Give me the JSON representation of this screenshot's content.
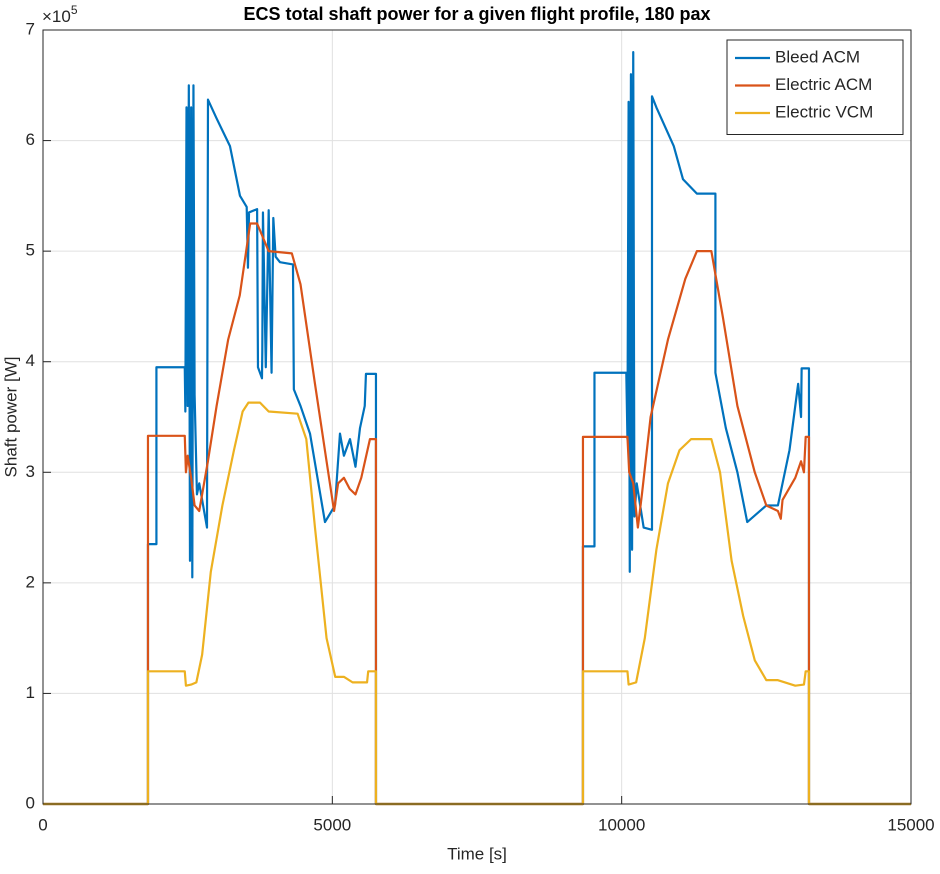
{
  "chart_data": {
    "type": "line",
    "title": "ECS total shaft power for a given flight profile, 180 pax",
    "x_label": "Time [s]",
    "y_label": "Shaft power [W]",
    "y_exponent_base": "×10",
    "y_exponent": "5",
    "xlim": [
      0,
      15000
    ],
    "xticks": [
      0,
      5000,
      10000,
      15000
    ],
    "ylim": [
      0,
      7
    ],
    "yticks": [
      0,
      1,
      2,
      3,
      4,
      5,
      6,
      7
    ],
    "grid": true,
    "legend": "top-right",
    "series": [
      {
        "name": "Bleed ACM",
        "color": "#0072bd",
        "x": [
          0,
          1814,
          1814,
          1960,
          1960,
          2450,
          2460,
          2480,
          2500,
          2520,
          2540,
          2560,
          2580,
          2600,
          2620,
          2660,
          2700,
          2834,
          2851,
          3000,
          3231,
          3404,
          3520,
          3542,
          3560,
          3700,
          3715,
          3784,
          3790,
          3801,
          3850,
          3900,
          3950,
          3980,
          4020,
          4095,
          4320,
          4335,
          4450,
          4614,
          4873,
          5046,
          5132,
          5200,
          5305,
          5400,
          5478,
          5560,
          5581,
          5754,
          5754,
          9331,
          9331,
          9530,
          9530,
          10080,
          10100,
          10120,
          10140,
          10160,
          10180,
          10200,
          10220,
          10260,
          10380,
          10524,
          10524,
          10600,
          10900,
          11060,
          11300,
          11620,
          11620,
          11800,
          12000,
          12170,
          12500,
          12700,
          12900,
          13050,
          13100,
          13110,
          13237,
          13237,
          15000
        ],
        "values": [
          0,
          0,
          2.35,
          2.35,
          3.95,
          3.95,
          3.55,
          6.3,
          3.6,
          6.5,
          2.2,
          6.3,
          2.05,
          6.5,
          3.7,
          2.8,
          2.9,
          2.5,
          6.37,
          6.2,
          5.95,
          5.5,
          5.4,
          4.85,
          5.35,
          5.38,
          3.95,
          3.85,
          4.1,
          5.35,
          3.95,
          5.37,
          3.9,
          5.3,
          4.95,
          4.9,
          4.88,
          3.75,
          3.6,
          3.35,
          2.55,
          2.7,
          3.35,
          3.15,
          3.3,
          3.05,
          3.4,
          3.6,
          3.89,
          3.89,
          0,
          0,
          2.33,
          2.33,
          3.9,
          3.9,
          3.3,
          6.35,
          2.1,
          6.6,
          2.3,
          6.8,
          2.6,
          2.9,
          2.5,
          2.48,
          6.4,
          6.3,
          5.95,
          5.65,
          5.52,
          5.52,
          3.9,
          3.4,
          3.0,
          2.55,
          2.7,
          2.7,
          3.2,
          3.8,
          3.5,
          3.94,
          3.94,
          0,
          0
        ]
      },
      {
        "name": "Electric ACM",
        "color": "#d95319",
        "x": [
          0,
          1814,
          1814,
          2450,
          2470,
          2500,
          2560,
          2620,
          2700,
          2850,
          3000,
          3200,
          3400,
          3580,
          3700,
          3900,
          4300,
          4450,
          4700,
          4900,
          5030,
          5100,
          5200,
          5300,
          5400,
          5500,
          5650,
          5754,
          5754,
          9331,
          9331,
          10100,
          10130,
          10200,
          10280,
          10350,
          10500,
          10800,
          11100,
          11300,
          11550,
          11750,
          12000,
          12300,
          12500,
          12700,
          12750,
          12780,
          13000,
          13100,
          13150,
          13180,
          13237,
          13237,
          15000
        ],
        "values": [
          0,
          0,
          3.33,
          3.33,
          3.0,
          3.15,
          2.95,
          2.7,
          2.65,
          3.1,
          3.6,
          4.2,
          4.6,
          5.25,
          5.25,
          5.0,
          4.98,
          4.7,
          3.8,
          3.1,
          2.65,
          2.9,
          2.95,
          2.85,
          2.8,
          2.95,
          3.3,
          3.3,
          0,
          0,
          3.32,
          3.32,
          3.0,
          2.9,
          2.5,
          2.8,
          3.5,
          4.2,
          4.75,
          5.0,
          5.0,
          4.4,
          3.6,
          3.0,
          2.7,
          2.65,
          2.58,
          2.75,
          2.95,
          3.1,
          3.0,
          3.32,
          3.32,
          0,
          0
        ]
      },
      {
        "name": "Electric VCM",
        "color": "#edb120",
        "x": [
          0,
          1814,
          1814,
          2450,
          2470,
          2560,
          2650,
          2750,
          2900,
          3100,
          3300,
          3450,
          3550,
          3750,
          3900,
          4400,
          4550,
          4700,
          4900,
          5050,
          5200,
          5350,
          5600,
          5620,
          5754,
          5754,
          9331,
          9331,
          10100,
          10120,
          10250,
          10400,
          10600,
          10800,
          11000,
          11200,
          11550,
          11700,
          11900,
          12100,
          12300,
          12500,
          12700,
          13000,
          13150,
          13180,
          13237,
          13237,
          15000
        ],
        "values": [
          0,
          0,
          1.2,
          1.2,
          1.07,
          1.08,
          1.1,
          1.35,
          2.1,
          2.7,
          3.2,
          3.55,
          3.63,
          3.63,
          3.55,
          3.53,
          3.3,
          2.5,
          1.5,
          1.15,
          1.15,
          1.1,
          1.1,
          1.2,
          1.2,
          0,
          0,
          1.2,
          1.2,
          1.08,
          1.1,
          1.5,
          2.3,
          2.9,
          3.2,
          3.3,
          3.3,
          3.0,
          2.2,
          1.7,
          1.3,
          1.12,
          1.12,
          1.07,
          1.08,
          1.2,
          1.2,
          0,
          0
        ]
      }
    ]
  }
}
